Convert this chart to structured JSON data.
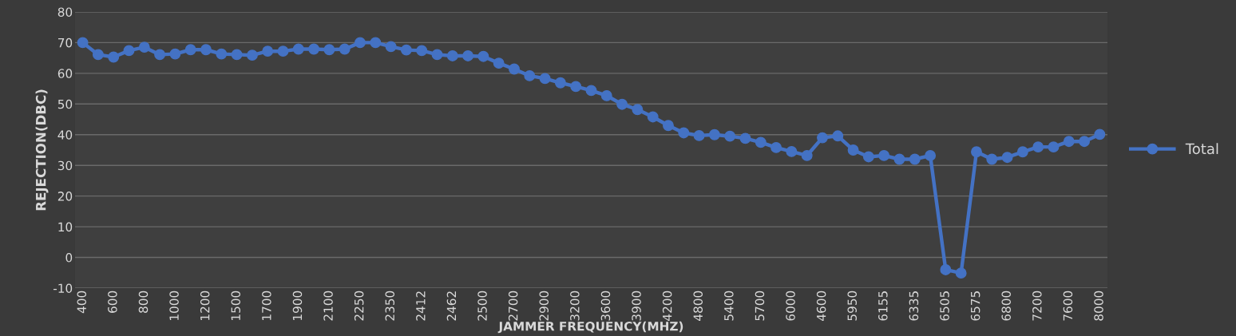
{
  "chart_data": {
    "type": "line",
    "xlabel": "JAMMER FREQUENCY(MHZ)",
    "ylabel": "REJECTION(DBC)",
    "categories": [
      "400",
      null,
      "600",
      null,
      "800",
      null,
      "1000",
      null,
      "1200",
      null,
      "1500",
      null,
      "1700",
      null,
      "1900",
      null,
      "2100",
      null,
      "2250",
      null,
      "2350",
      null,
      "2412",
      null,
      "2462",
      null,
      "2500",
      null,
      "2700",
      null,
      "2900",
      null,
      "3200",
      null,
      "3600",
      null,
      "3900",
      null,
      "4200",
      null,
      "4800",
      null,
      "5400",
      null,
      "5700",
      null,
      "6000",
      null,
      "4600",
      null,
      "5950",
      null,
      "6155",
      null,
      "6335",
      null,
      "6505",
      null,
      "6575",
      null,
      "6800",
      null,
      "7200",
      null,
      "7600",
      null,
      "8000"
    ],
    "series": [
      {
        "name": "Total",
        "color": "#4472c4",
        "values": [
          70,
          66.1,
          65.3,
          67.4,
          68.5,
          66.1,
          66.3,
          67.7,
          67.7,
          66.3,
          66.1,
          65.9,
          67.2,
          67.2,
          67.9,
          67.9,
          67.7,
          67.9,
          70,
          70,
          68.7,
          67.6,
          67.4,
          66.1,
          65.7,
          65.7,
          65.5,
          63.3,
          61.4,
          59.2,
          58.3,
          56.9,
          55.7,
          54.4,
          52.7,
          49.9,
          48.2,
          45.8,
          43,
          40.6,
          39.7,
          40,
          39.5,
          38.8,
          37.5,
          35.8,
          34.5,
          33.2,
          39,
          39.6,
          35,
          32.8,
          33.2,
          32,
          32,
          33.2,
          -4,
          -5.1,
          34.4,
          32,
          32.6,
          34.4,
          36,
          36,
          37.8,
          37.8,
          40.1
        ]
      }
    ],
    "ylim": [
      -10,
      80
    ],
    "yticks": [
      -10,
      0,
      10,
      20,
      30,
      40,
      50,
      60,
      70,
      80
    ],
    "grid": "y",
    "legend": "right",
    "marker": "circle",
    "line_style": "solid"
  }
}
